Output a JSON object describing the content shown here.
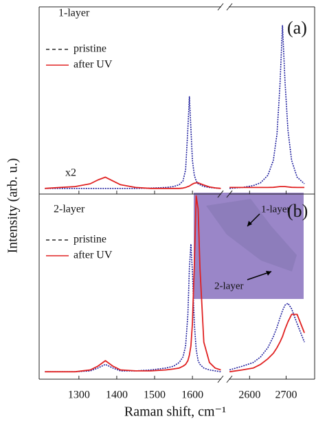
{
  "chart_data": [
    {
      "type": "line",
      "title": "1-layer",
      "panel_label": "(a)",
      "annotation": "x2",
      "ylabel": "Intensity (arb. u.)",
      "xlim": [
        [
          1195,
          1676
        ],
        [
          2543,
          2778
        ]
      ],
      "ylim": [
        0,
        100
      ],
      "x": [
        1210,
        1250,
        1290,
        1330,
        1350,
        1370,
        1390,
        1410,
        1450,
        1490,
        1530,
        1550,
        1565,
        1575,
        1582,
        1588,
        1592,
        1596,
        1600,
        1605,
        1610,
        1615,
        1620,
        1630,
        1645,
        1660,
        1675,
        2000,
        2545,
        2580,
        2610,
        2630,
        2650,
        2665,
        2675,
        2683,
        2690,
        2697,
        2705,
        2715,
        2730,
        2750,
        2780
      ],
      "series": [
        {
          "name": "pristine",
          "color": "#1c1c9c",
          "style": "dotted",
          "values": [
            3,
            3,
            3,
            3,
            3,
            3,
            3,
            3,
            3,
            3.2,
            3.5,
            4,
            5,
            7,
            13,
            35,
            52,
            35,
            18,
            10,
            7,
            5.5,
            5,
            4,
            3.5,
            3.2,
            3,
            null,
            3,
            3.5,
            4.5,
            6,
            10,
            18,
            32,
            58,
            90,
            60,
            34,
            18,
            9,
            5.5,
            4
          ]
        },
        {
          "name": "after UV",
          "color": "#e02020",
          "style": "solid",
          "values": [
            3,
            3.5,
            4,
            5.5,
            7.5,
            9,
            7,
            5,
            3.5,
            3,
            3,
            3,
            3,
            3.2,
            3.5,
            4,
            4.3,
            4.8,
            5.3,
            5.8,
            6,
            6,
            5.6,
            4.8,
            3.8,
            3.3,
            3,
            null,
            3.5,
            3.5,
            3.5,
            3.5,
            3.5,
            3.6,
            3.8,
            4,
            4,
            4,
            3.8,
            3.6,
            3.5,
            3.5,
            3.5
          ]
        }
      ]
    },
    {
      "type": "line",
      "title": "2-layer",
      "panel_label": "(b)",
      "xlabel": "Raman shift, cm⁻¹",
      "inset_labels": [
        "1-layer",
        "2-layer"
      ],
      "xlim": [
        [
          1195,
          1676
        ],
        [
          2543,
          2778
        ]
      ],
      "ylim": [
        0,
        100
      ],
      "xticks": [
        1300,
        1400,
        1500,
        1600,
        2600,
        2700
      ],
      "x": [
        1210,
        1250,
        1290,
        1330,
        1350,
        1370,
        1390,
        1410,
        1450,
        1490,
        1530,
        1550,
        1565,
        1575,
        1582,
        1588,
        1592,
        1596,
        1600,
        1605,
        1610,
        1615,
        1620,
        1630,
        1645,
        1660,
        1675,
        2000,
        2545,
        2580,
        2610,
        2630,
        2650,
        2665,
        2675,
        2683,
        2690,
        2697,
        2705,
        2715,
        2730,
        2750,
        2780
      ],
      "series": [
        {
          "name": "pristine",
          "color": "#1c1c9c",
          "style": "dotted",
          "values": [
            4,
            4,
            4,
            4.5,
            6,
            8,
            6,
            4.5,
            4.5,
            5,
            6,
            7,
            9,
            12,
            18,
            35,
            60,
            73,
            58,
            30,
            16,
            10,
            8,
            6,
            5,
            4.5,
            4,
            null,
            5,
            7,
            9,
            12,
            17,
            23,
            28,
            33,
            37,
            40,
            41,
            38,
            30,
            20,
            10
          ]
        },
        {
          "name": "after UV",
          "color": "#e02020",
          "style": "solid",
          "values": [
            4,
            4,
            4,
            5,
            7,
            10,
            7,
            5,
            4.5,
            4.5,
            5,
            5.5,
            6,
            7,
            8,
            10,
            13,
            18,
            30,
            62,
            99,
            92,
            60,
            20,
            9,
            6,
            5,
            null,
            4,
            5,
            6,
            8,
            11,
            14,
            17,
            20,
            23,
            27,
            31,
            35,
            35,
            25,
            11
          ]
        }
      ]
    }
  ]
}
